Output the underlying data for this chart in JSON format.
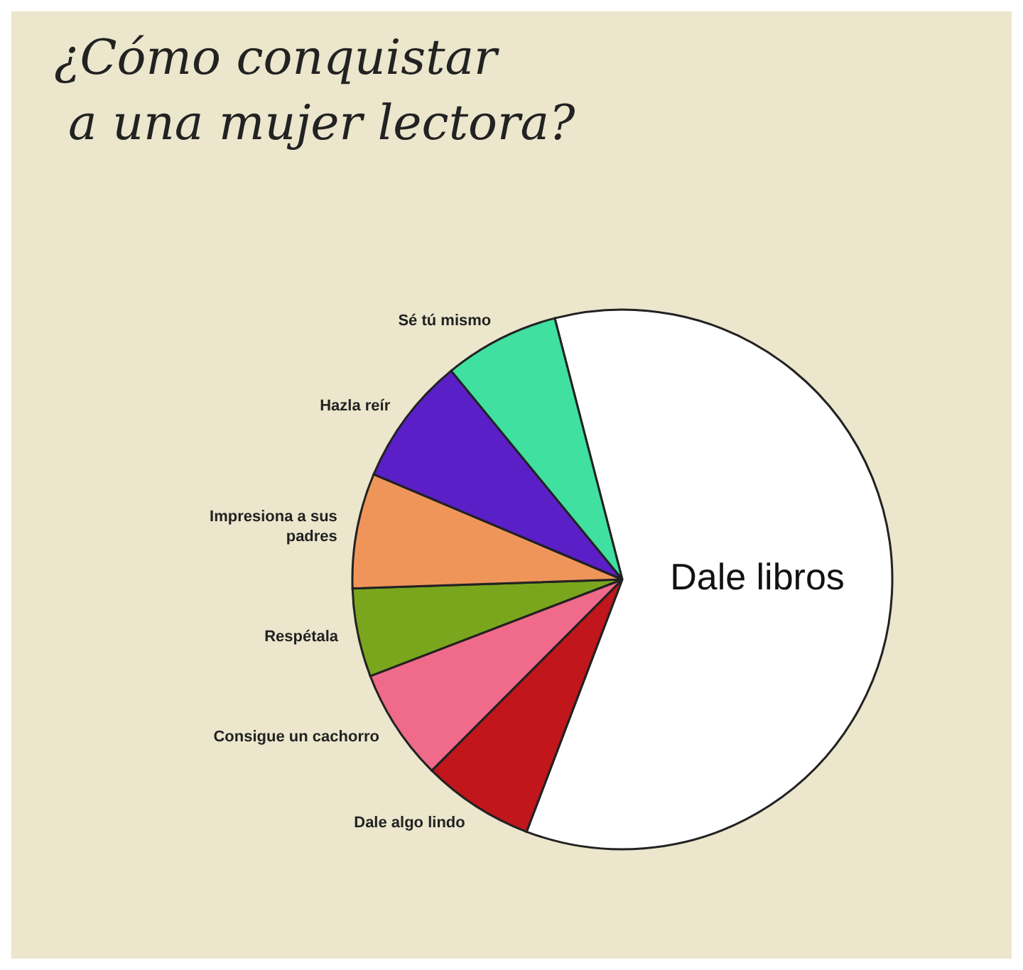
{
  "chart_data": {
    "type": "pie",
    "title": "¿Cómo conquistar a una mujer lectora?",
    "categories": [
      "Dale libros",
      "Dale algo lindo",
      "Consigue un cachorro",
      "Respétala",
      "Impresiona a sus padres",
      "Hazla reír",
      "Sé tú mismo"
    ],
    "values": [
      59.8,
      6.7,
      6.7,
      5.3,
      6.9,
      7.7,
      6.9
    ],
    "colors": [
      "#ffffff",
      "#c0161c",
      "#f06a8a",
      "#7aa61e",
      "#f0955a",
      "#5b1fc8",
      "#40e0a0"
    ]
  }
}
